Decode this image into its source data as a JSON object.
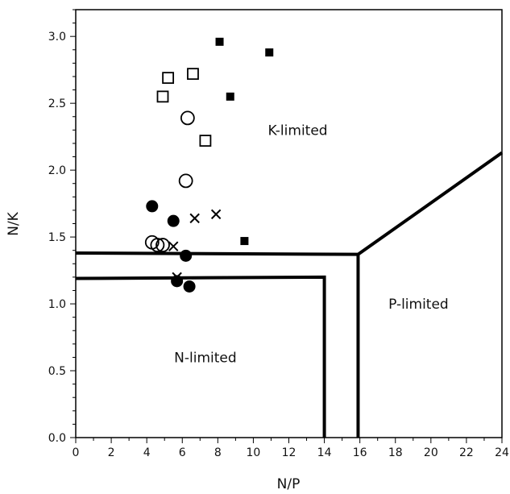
{
  "chart_data": {
    "type": "scatter",
    "title": "",
    "xlabel": "N/P",
    "ylabel": "N/K",
    "xlim": [
      0,
      24
    ],
    "ylim": [
      0,
      3.2
    ],
    "x_ticks": [
      "0",
      "2",
      "4",
      "6",
      "8",
      "10",
      "12",
      "14",
      "16",
      "18",
      "20",
      "22",
      "24"
    ],
    "y_ticks": [
      "0.0",
      "0.5",
      "1.0",
      "1.5",
      "2.0",
      "2.5",
      "3.0"
    ],
    "grid": false,
    "legend": "none",
    "series": [
      {
        "marker": "filled-square",
        "points": [
          [
            8.1,
            2.96
          ],
          [
            10.9,
            2.88
          ],
          [
            8.7,
            2.55
          ],
          [
            9.5,
            1.47
          ]
        ]
      },
      {
        "marker": "open-square",
        "points": [
          [
            5.2,
            2.69
          ],
          [
            6.6,
            2.72
          ],
          [
            4.9,
            2.55
          ],
          [
            7.3,
            2.22
          ]
        ]
      },
      {
        "marker": "open-circle",
        "points": [
          [
            6.3,
            2.39
          ],
          [
            6.2,
            1.92
          ],
          [
            4.3,
            1.46
          ],
          [
            4.6,
            1.44
          ],
          [
            4.9,
            1.44
          ]
        ]
      },
      {
        "marker": "filled-circle",
        "points": [
          [
            4.3,
            1.73
          ],
          [
            5.5,
            1.62
          ],
          [
            6.2,
            1.36
          ],
          [
            5.7,
            1.17
          ],
          [
            6.4,
            1.13
          ]
        ]
      },
      {
        "marker": "cross",
        "points": [
          [
            6.7,
            1.64
          ],
          [
            7.9,
            1.67
          ],
          [
            5.5,
            1.43
          ],
          [
            5.7,
            1.2
          ]
        ]
      }
    ],
    "regions": [
      {
        "label": "K-limited",
        "x": 12.5,
        "y": 2.3
      },
      {
        "label": "P-limited",
        "x": 19.3,
        "y": 1.0
      },
      {
        "label": "N-limited",
        "x": 7.3,
        "y": 0.6
      }
    ],
    "boundary_lines": [
      [
        [
          0,
          1.38
        ],
        [
          15.9,
          1.37
        ],
        [
          24,
          2.13
        ]
      ],
      [
        [
          15.9,
          1.37
        ],
        [
          15.9,
          0
        ]
      ],
      [
        [
          0,
          1.19
        ],
        [
          14.0,
          1.2
        ],
        [
          14.0,
          0
        ]
      ]
    ]
  }
}
